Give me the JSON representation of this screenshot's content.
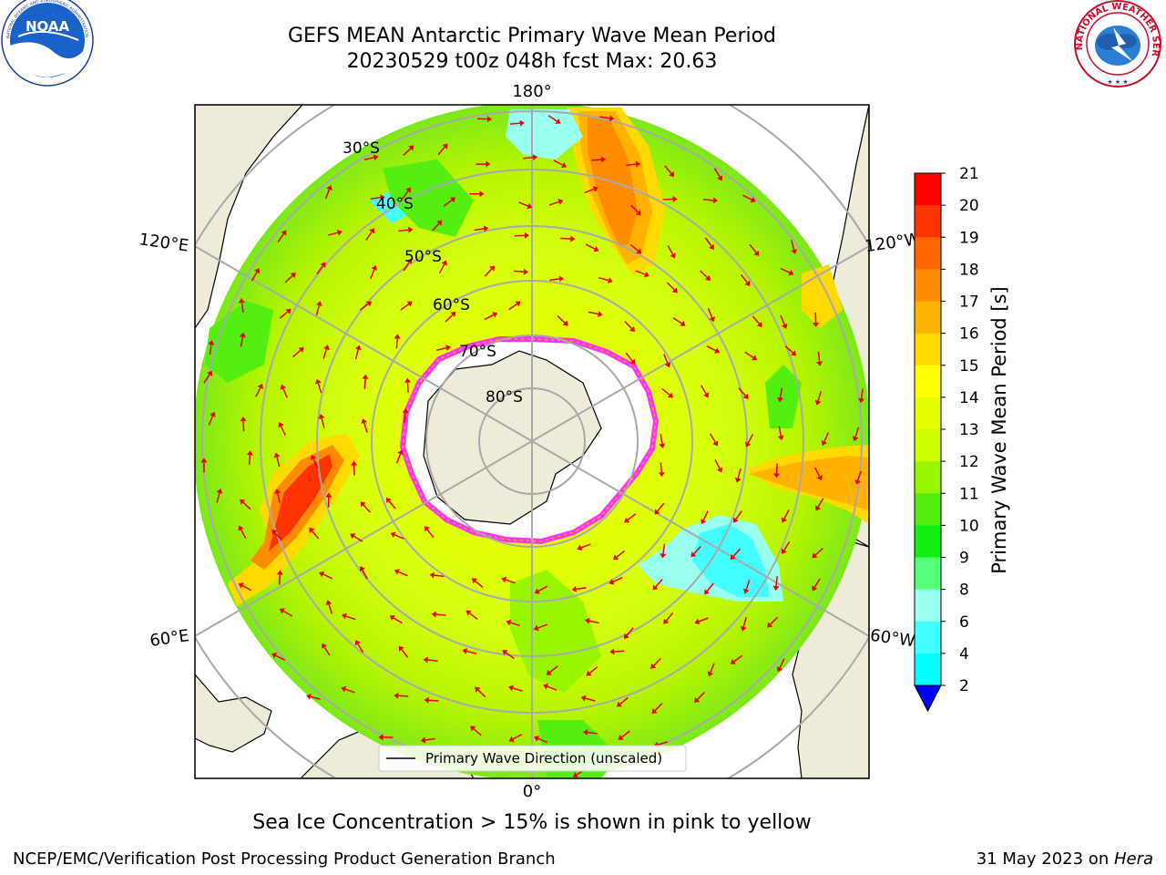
{
  "header": {
    "title_line1": "GEFS MEAN Antarctic Primary Wave Mean Period",
    "title_line2": "20230529 t00z 048h fcst   Max: 20.63"
  },
  "logos": {
    "left": "NOAA",
    "left_ring_text": "NATIONAL OCEANIC AND ATMOSPHERIC ADMINISTRATION · U.S. DEPARTMENT OF COMMERCE",
    "right_ring_text": "NATIONAL WEATHER SERVICE"
  },
  "map": {
    "longitude_labels": [
      "180°",
      "120°E",
      "120°W",
      "60°E",
      "60°W",
      "0°"
    ],
    "latitude_labels": [
      "30°S",
      "40°S",
      "50°S",
      "60°S",
      "70°S",
      "80°S"
    ],
    "legend_entry": "Primary Wave Direction (unscaled)",
    "arrow_color": "#ee0000",
    "land_color": "#efebd9",
    "ice_edge_colors": [
      "#ff33ff",
      "#ffaa00"
    ]
  },
  "colorbar": {
    "label": "Primary Wave Mean Period [s]",
    "tick_labels": [
      "21",
      "20",
      "19",
      "18",
      "17",
      "16",
      "15",
      "14",
      "13",
      "12",
      "11",
      "10",
      "9",
      "8",
      "6",
      "4",
      "2"
    ],
    "colors": [
      "#ff0000",
      "#ff3300",
      "#ff6600",
      "#ff8c00",
      "#ffb300",
      "#ffd900",
      "#ffff00",
      "#e6ff00",
      "#ccff00",
      "#99f500",
      "#55ee11",
      "#11ee11",
      "#55ff77",
      "#99ffee",
      "#44ffff",
      "#00ffff",
      "#0077ff"
    ],
    "under_color": "#0000ff"
  },
  "caption": "Sea Ice Concentration > 15% is shown in pink to yellow",
  "footer": {
    "left": "NCEP/EMC/Verification Post Processing Product Generation Branch",
    "date": "31 May 2023 on ",
    "host": "Hera"
  }
}
